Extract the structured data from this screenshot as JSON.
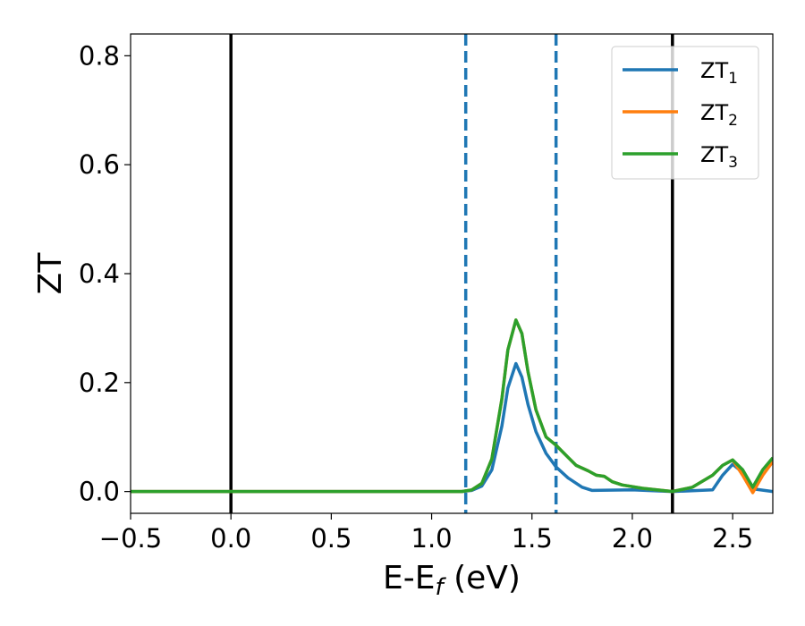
{
  "chart_data": {
    "type": "line",
    "title": "",
    "xlabel": "E-E",
    "xlabel_sub": "f",
    "xlabel_unit": " (eV)",
    "ylabel": "ZT",
    "xlim": [
      -0.5,
      2.7
    ],
    "ylim": [
      -0.04,
      0.84
    ],
    "xticks": [
      -0.5,
      0.0,
      0.5,
      1.0,
      1.5,
      2.0,
      2.5
    ],
    "xtick_labels": [
      "−0.5",
      "0.0",
      "0.5",
      "1.0",
      "1.5",
      "2.0",
      "2.5"
    ],
    "yticks": [
      0.0,
      0.2,
      0.4,
      0.6,
      0.8
    ],
    "ytick_labels": [
      "0.0",
      "0.2",
      "0.4",
      "0.6",
      "0.8"
    ],
    "grid": false,
    "legend_position": "top-right",
    "vlines": [
      {
        "x": 0.0,
        "style": "solid",
        "color": "#000000"
      },
      {
        "x": 2.2,
        "style": "solid",
        "color": "#000000"
      },
      {
        "x": 1.17,
        "style": "dashed",
        "color": "#1f77b4"
      },
      {
        "x": 1.62,
        "style": "dashed",
        "color": "#1f77b4"
      }
    ],
    "series": [
      {
        "name": "ZT",
        "sub": "1",
        "color": "#1f77b4",
        "points": [
          [
            -0.5,
            0
          ],
          [
            1.15,
            0
          ],
          [
            1.2,
            0.002
          ],
          [
            1.25,
            0.01
          ],
          [
            1.3,
            0.04
          ],
          [
            1.35,
            0.12
          ],
          [
            1.38,
            0.19
          ],
          [
            1.42,
            0.235
          ],
          [
            1.45,
            0.21
          ],
          [
            1.48,
            0.16
          ],
          [
            1.52,
            0.11
          ],
          [
            1.57,
            0.07
          ],
          [
            1.62,
            0.045
          ],
          [
            1.68,
            0.025
          ],
          [
            1.75,
            0.008
          ],
          [
            1.8,
            0.002
          ],
          [
            2.0,
            0.003
          ],
          [
            2.2,
            0.0
          ],
          [
            2.4,
            0.003
          ],
          [
            2.45,
            0.03
          ],
          [
            2.5,
            0.05
          ],
          [
            2.55,
            0.035
          ],
          [
            2.6,
            0.005
          ],
          [
            2.7,
            0.0
          ]
        ]
      },
      {
        "name": "ZT",
        "sub": "2",
        "color": "#ff7f0e",
        "points": [
          [
            -0.5,
            0
          ],
          [
            1.15,
            0
          ],
          [
            1.2,
            0.003
          ],
          [
            1.25,
            0.015
          ],
          [
            1.3,
            0.06
          ],
          [
            1.35,
            0.17
          ],
          [
            1.38,
            0.26
          ],
          [
            1.42,
            0.315
          ],
          [
            1.45,
            0.29
          ],
          [
            1.48,
            0.22
          ],
          [
            1.52,
            0.15
          ],
          [
            1.57,
            0.1
          ],
          [
            1.62,
            0.085
          ],
          [
            1.66,
            0.07
          ],
          [
            1.72,
            0.048
          ],
          [
            1.78,
            0.038
          ],
          [
            1.82,
            0.03
          ],
          [
            1.86,
            0.028
          ],
          [
            1.9,
            0.018
          ],
          [
            1.95,
            0.012
          ],
          [
            2.05,
            0.006
          ],
          [
            2.2,
            0.0
          ],
          [
            2.3,
            0.008
          ],
          [
            2.4,
            0.03
          ],
          [
            2.45,
            0.048
          ],
          [
            2.5,
            0.058
          ],
          [
            2.55,
            0.03
          ],
          [
            2.6,
            -0.002
          ],
          [
            2.65,
            0.03
          ],
          [
            2.7,
            0.055
          ]
        ]
      },
      {
        "name": "ZT",
        "sub": "3",
        "color": "#2ca02c",
        "points": [
          [
            -0.5,
            0
          ],
          [
            1.15,
            0
          ],
          [
            1.2,
            0.003
          ],
          [
            1.25,
            0.015
          ],
          [
            1.3,
            0.06
          ],
          [
            1.35,
            0.17
          ],
          [
            1.38,
            0.26
          ],
          [
            1.42,
            0.315
          ],
          [
            1.45,
            0.29
          ],
          [
            1.48,
            0.22
          ],
          [
            1.52,
            0.15
          ],
          [
            1.57,
            0.1
          ],
          [
            1.62,
            0.085
          ],
          [
            1.66,
            0.07
          ],
          [
            1.72,
            0.048
          ],
          [
            1.78,
            0.038
          ],
          [
            1.82,
            0.03
          ],
          [
            1.86,
            0.028
          ],
          [
            1.9,
            0.018
          ],
          [
            1.95,
            0.012
          ],
          [
            2.05,
            0.006
          ],
          [
            2.2,
            0.0
          ],
          [
            2.3,
            0.008
          ],
          [
            2.4,
            0.03
          ],
          [
            2.45,
            0.048
          ],
          [
            2.5,
            0.058
          ],
          [
            2.55,
            0.04
          ],
          [
            2.6,
            0.008
          ],
          [
            2.65,
            0.04
          ],
          [
            2.7,
            0.062
          ]
        ]
      }
    ]
  }
}
